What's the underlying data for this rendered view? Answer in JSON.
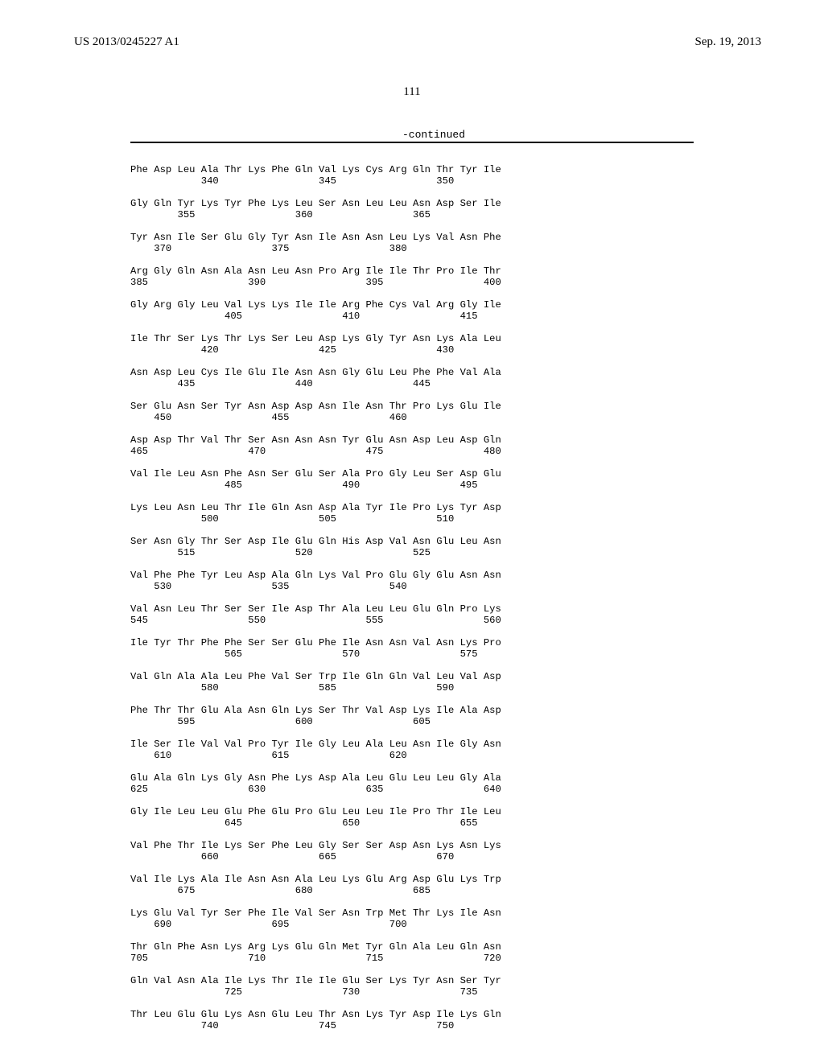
{
  "header": {
    "pub_number": "US 2013/0245227 A1",
    "pub_date": "Sep. 19, 2013"
  },
  "page_number": "111",
  "continued_label": "-continued",
  "sequence_text": "Phe Asp Leu Ala Thr Lys Phe Gln Val Lys Cys Arg Gln Thr Tyr Ile\n            340                 345                 350\n\nGly Gln Tyr Lys Tyr Phe Lys Leu Ser Asn Leu Leu Asn Asp Ser Ile\n        355                 360                 365\n\nTyr Asn Ile Ser Glu Gly Tyr Asn Ile Asn Asn Leu Lys Val Asn Phe\n    370                 375                 380\n\nArg Gly Gln Asn Ala Asn Leu Asn Pro Arg Ile Ile Thr Pro Ile Thr\n385                 390                 395                 400\n\nGly Arg Gly Leu Val Lys Lys Ile Ile Arg Phe Cys Val Arg Gly Ile\n                405                 410                 415\n\nIle Thr Ser Lys Thr Lys Ser Leu Asp Lys Gly Tyr Asn Lys Ala Leu\n            420                 425                 430\n\nAsn Asp Leu Cys Ile Glu Ile Asn Asn Gly Glu Leu Phe Phe Val Ala\n        435                 440                 445\n\nSer Glu Asn Ser Tyr Asn Asp Asp Asn Ile Asn Thr Pro Lys Glu Ile\n    450                 455                 460\n\nAsp Asp Thr Val Thr Ser Asn Asn Asn Tyr Glu Asn Asp Leu Asp Gln\n465                 470                 475                 480\n\nVal Ile Leu Asn Phe Asn Ser Glu Ser Ala Pro Gly Leu Ser Asp Glu\n                485                 490                 495\n\nLys Leu Asn Leu Thr Ile Gln Asn Asp Ala Tyr Ile Pro Lys Tyr Asp\n            500                 505                 510\n\nSer Asn Gly Thr Ser Asp Ile Glu Gln His Asp Val Asn Glu Leu Asn\n        515                 520                 525\n\nVal Phe Phe Tyr Leu Asp Ala Gln Lys Val Pro Glu Gly Glu Asn Asn\n    530                 535                 540\n\nVal Asn Leu Thr Ser Ser Ile Asp Thr Ala Leu Leu Glu Gln Pro Lys\n545                 550                 555                 560\n\nIle Tyr Thr Phe Phe Ser Ser Glu Phe Ile Asn Asn Val Asn Lys Pro\n                565                 570                 575\n\nVal Gln Ala Ala Leu Phe Val Ser Trp Ile Gln Gln Val Leu Val Asp\n            580                 585                 590\n\nPhe Thr Thr Glu Ala Asn Gln Lys Ser Thr Val Asp Lys Ile Ala Asp\n        595                 600                 605\n\nIle Ser Ile Val Val Pro Tyr Ile Gly Leu Ala Leu Asn Ile Gly Asn\n    610                 615                 620\n\nGlu Ala Gln Lys Gly Asn Phe Lys Asp Ala Leu Glu Leu Leu Gly Ala\n625                 630                 635                 640\n\nGly Ile Leu Leu Glu Phe Glu Pro Glu Leu Leu Ile Pro Thr Ile Leu\n                645                 650                 655\n\nVal Phe Thr Ile Lys Ser Phe Leu Gly Ser Ser Asp Asn Lys Asn Lys\n            660                 665                 670\n\nVal Ile Lys Ala Ile Asn Asn Ala Leu Lys Glu Arg Asp Glu Lys Trp\n        675                 680                 685\n\nLys Glu Val Tyr Ser Phe Ile Val Ser Asn Trp Met Thr Lys Ile Asn\n    690                 695                 700\n\nThr Gln Phe Asn Lys Arg Lys Glu Gln Met Tyr Gln Ala Leu Gln Asn\n705                 710                 715                 720\n\nGln Val Asn Ala Ile Lys Thr Ile Ile Glu Ser Lys Tyr Asn Ser Tyr\n                725                 730                 735\n\nThr Leu Glu Glu Lys Asn Glu Leu Thr Asn Lys Tyr Asp Ile Lys Gln\n            740                 745                 750"
}
